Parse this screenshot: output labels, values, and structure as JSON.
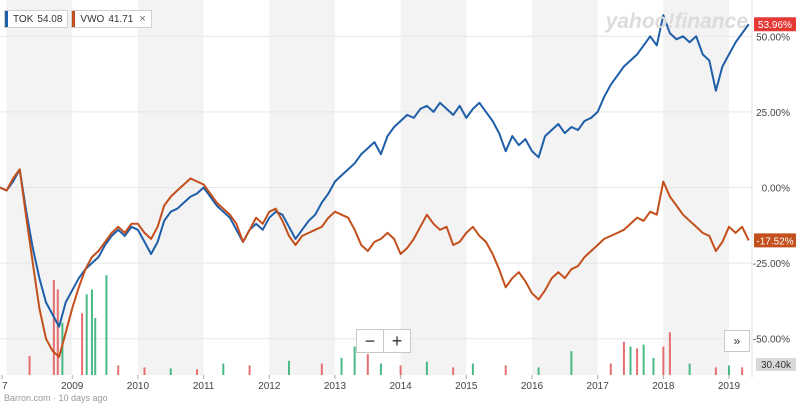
{
  "brand": "yahoo!finance",
  "legend": [
    {
      "symbol": "TOK",
      "value": "54.08",
      "color": "#1f5ea8",
      "close": ""
    },
    {
      "symbol": "VWO",
      "value": "41.71",
      "color": "#c24f1c",
      "close": "×"
    }
  ],
  "controls": {
    "zoom_out": "−",
    "zoom_in": "+",
    "expand": "»"
  },
  "footer_text": "Barron.com · 10 days ago",
  "volume_label": "30.40k",
  "chart_data": {
    "type": "line",
    "x_ticks": [
      "7",
      "2009",
      "2010",
      "2011",
      "2012",
      "2013",
      "2014",
      "2015",
      "2016",
      "2017",
      "2018",
      "2019"
    ],
    "y_ticks": [
      "50.00%",
      "25.00%",
      "0.00%",
      "-25.00%",
      "-50.00%"
    ],
    "ylim": [
      -62,
      62
    ],
    "xlim": [
      2007.9,
      2019.35
    ],
    "last_value_labels": {
      "TOK": "53.96%",
      "VWO": "-17.52%"
    },
    "series": [
      {
        "name": "TOK",
        "color": "#1f5ea8",
        "points": [
          [
            2007.9,
            0
          ],
          [
            2008.0,
            -1
          ],
          [
            2008.1,
            2
          ],
          [
            2008.2,
            6
          ],
          [
            2008.3,
            -8
          ],
          [
            2008.4,
            -20
          ],
          [
            2008.5,
            -30
          ],
          [
            2008.6,
            -38
          ],
          [
            2008.7,
            -42
          ],
          [
            2008.8,
            -46
          ],
          [
            2008.9,
            -38
          ],
          [
            2009.0,
            -34
          ],
          [
            2009.1,
            -30
          ],
          [
            2009.2,
            -27
          ],
          [
            2009.3,
            -25
          ],
          [
            2009.4,
            -23
          ],
          [
            2009.5,
            -19
          ],
          [
            2009.6,
            -16
          ],
          [
            2009.7,
            -14
          ],
          [
            2009.8,
            -16
          ],
          [
            2009.9,
            -13
          ],
          [
            2010.0,
            -14
          ],
          [
            2010.1,
            -18
          ],
          [
            2010.2,
            -22
          ],
          [
            2010.3,
            -18
          ],
          [
            2010.4,
            -11
          ],
          [
            2010.5,
            -8
          ],
          [
            2010.6,
            -7
          ],
          [
            2010.7,
            -5
          ],
          [
            2010.8,
            -3
          ],
          [
            2010.9,
            -2
          ],
          [
            2011.0,
            0
          ],
          [
            2011.1,
            -3
          ],
          [
            2011.2,
            -6
          ],
          [
            2011.3,
            -8
          ],
          [
            2011.4,
            -10
          ],
          [
            2011.5,
            -14
          ],
          [
            2011.6,
            -18
          ],
          [
            2011.7,
            -14
          ],
          [
            2011.8,
            -12
          ],
          [
            2011.9,
            -14
          ],
          [
            2012.0,
            -10
          ],
          [
            2012.1,
            -8
          ],
          [
            2012.2,
            -9
          ],
          [
            2012.3,
            -13
          ],
          [
            2012.4,
            -17
          ],
          [
            2012.5,
            -14
          ],
          [
            2012.6,
            -11
          ],
          [
            2012.7,
            -9
          ],
          [
            2012.8,
            -5
          ],
          [
            2012.9,
            -2
          ],
          [
            2013.0,
            2
          ],
          [
            2013.1,
            4
          ],
          [
            2013.2,
            6
          ],
          [
            2013.3,
            8
          ],
          [
            2013.4,
            11
          ],
          [
            2013.5,
            13
          ],
          [
            2013.6,
            15
          ],
          [
            2013.7,
            11
          ],
          [
            2013.8,
            17
          ],
          [
            2013.9,
            20
          ],
          [
            2014.0,
            22
          ],
          [
            2014.1,
            24
          ],
          [
            2014.2,
            23
          ],
          [
            2014.3,
            26
          ],
          [
            2014.4,
            27
          ],
          [
            2014.5,
            25
          ],
          [
            2014.6,
            28
          ],
          [
            2014.7,
            26
          ],
          [
            2014.8,
            24
          ],
          [
            2014.9,
            27
          ],
          [
            2015.0,
            23
          ],
          [
            2015.1,
            26
          ],
          [
            2015.2,
            28
          ],
          [
            2015.3,
            25
          ],
          [
            2015.4,
            22
          ],
          [
            2015.5,
            18
          ],
          [
            2015.6,
            12
          ],
          [
            2015.7,
            17
          ],
          [
            2015.8,
            14
          ],
          [
            2015.9,
            16
          ],
          [
            2016.0,
            12
          ],
          [
            2016.1,
            10
          ],
          [
            2016.2,
            17
          ],
          [
            2016.3,
            19
          ],
          [
            2016.4,
            21
          ],
          [
            2016.5,
            18
          ],
          [
            2016.6,
            20
          ],
          [
            2016.7,
            19
          ],
          [
            2016.8,
            22
          ],
          [
            2016.9,
            23
          ],
          [
            2017.0,
            25
          ],
          [
            2017.1,
            30
          ],
          [
            2017.2,
            34
          ],
          [
            2017.3,
            37
          ],
          [
            2017.4,
            40
          ],
          [
            2017.5,
            42
          ],
          [
            2017.6,
            44
          ],
          [
            2017.7,
            47
          ],
          [
            2017.8,
            50
          ],
          [
            2017.9,
            47
          ],
          [
            2018.0,
            57
          ],
          [
            2018.1,
            51
          ],
          [
            2018.2,
            49
          ],
          [
            2018.3,
            50
          ],
          [
            2018.4,
            48
          ],
          [
            2018.5,
            50
          ],
          [
            2018.6,
            44
          ],
          [
            2018.7,
            42
          ],
          [
            2018.8,
            32
          ],
          [
            2018.9,
            40
          ],
          [
            2019.0,
            44
          ],
          [
            2019.1,
            48
          ],
          [
            2019.2,
            51
          ],
          [
            2019.3,
            54
          ]
        ]
      },
      {
        "name": "VWO",
        "color": "#c24f1c",
        "points": [
          [
            2007.9,
            0
          ],
          [
            2008.0,
            -1
          ],
          [
            2008.1,
            3
          ],
          [
            2008.2,
            6
          ],
          [
            2008.3,
            -10
          ],
          [
            2008.4,
            -25
          ],
          [
            2008.5,
            -40
          ],
          [
            2008.6,
            -50
          ],
          [
            2008.7,
            -54
          ],
          [
            2008.8,
            -56
          ],
          [
            2008.9,
            -48
          ],
          [
            2009.0,
            -40
          ],
          [
            2009.1,
            -33
          ],
          [
            2009.2,
            -27
          ],
          [
            2009.3,
            -23
          ],
          [
            2009.4,
            -21
          ],
          [
            2009.5,
            -18
          ],
          [
            2009.6,
            -15
          ],
          [
            2009.7,
            -13
          ],
          [
            2009.8,
            -15
          ],
          [
            2009.9,
            -12
          ],
          [
            2010.0,
            -12
          ],
          [
            2010.1,
            -15
          ],
          [
            2010.2,
            -17
          ],
          [
            2010.3,
            -13
          ],
          [
            2010.4,
            -6
          ],
          [
            2010.5,
            -3
          ],
          [
            2010.6,
            -1
          ],
          [
            2010.7,
            1
          ],
          [
            2010.8,
            3
          ],
          [
            2010.9,
            2
          ],
          [
            2011.0,
            1
          ],
          [
            2011.1,
            -2
          ],
          [
            2011.2,
            -5
          ],
          [
            2011.3,
            -7
          ],
          [
            2011.4,
            -9
          ],
          [
            2011.5,
            -12
          ],
          [
            2011.6,
            -18
          ],
          [
            2011.7,
            -14
          ],
          [
            2011.8,
            -10
          ],
          [
            2011.9,
            -12
          ],
          [
            2012.0,
            -8
          ],
          [
            2012.1,
            -7
          ],
          [
            2012.2,
            -11
          ],
          [
            2012.3,
            -16
          ],
          [
            2012.4,
            -19
          ],
          [
            2012.5,
            -16
          ],
          [
            2012.6,
            -15
          ],
          [
            2012.7,
            -14
          ],
          [
            2012.8,
            -13
          ],
          [
            2012.9,
            -10
          ],
          [
            2013.0,
            -8
          ],
          [
            2013.1,
            -9
          ],
          [
            2013.2,
            -10
          ],
          [
            2013.3,
            -14
          ],
          [
            2013.4,
            -19
          ],
          [
            2013.5,
            -21
          ],
          [
            2013.6,
            -18
          ],
          [
            2013.7,
            -17
          ],
          [
            2013.8,
            -15
          ],
          [
            2013.9,
            -17
          ],
          [
            2014.0,
            -22
          ],
          [
            2014.1,
            -20
          ],
          [
            2014.2,
            -17
          ],
          [
            2014.3,
            -13
          ],
          [
            2014.4,
            -9
          ],
          [
            2014.5,
            -12
          ],
          [
            2014.6,
            -14
          ],
          [
            2014.7,
            -13
          ],
          [
            2014.8,
            -19
          ],
          [
            2014.9,
            -18
          ],
          [
            2015.0,
            -15
          ],
          [
            2015.1,
            -13
          ],
          [
            2015.2,
            -16
          ],
          [
            2015.3,
            -18
          ],
          [
            2015.4,
            -22
          ],
          [
            2015.5,
            -27
          ],
          [
            2015.6,
            -33
          ],
          [
            2015.7,
            -30
          ],
          [
            2015.8,
            -28
          ],
          [
            2015.9,
            -31
          ],
          [
            2016.0,
            -35
          ],
          [
            2016.1,
            -37
          ],
          [
            2016.2,
            -34
          ],
          [
            2016.3,
            -30
          ],
          [
            2016.4,
            -28
          ],
          [
            2016.5,
            -30
          ],
          [
            2016.6,
            -27
          ],
          [
            2016.7,
            -26
          ],
          [
            2016.8,
            -23
          ],
          [
            2016.9,
            -21
          ],
          [
            2017.0,
            -19
          ],
          [
            2017.1,
            -17
          ],
          [
            2017.2,
            -16
          ],
          [
            2017.3,
            -15
          ],
          [
            2017.4,
            -14
          ],
          [
            2017.5,
            -12
          ],
          [
            2017.6,
            -10
          ],
          [
            2017.7,
            -11
          ],
          [
            2017.8,
            -8
          ],
          [
            2017.9,
            -9
          ],
          [
            2018.0,
            2
          ],
          [
            2018.1,
            -3
          ],
          [
            2018.2,
            -6
          ],
          [
            2018.3,
            -9
          ],
          [
            2018.4,
            -11
          ],
          [
            2018.5,
            -13
          ],
          [
            2018.6,
            -15
          ],
          [
            2018.7,
            -16
          ],
          [
            2018.8,
            -21
          ],
          [
            2018.9,
            -18
          ],
          [
            2019.0,
            -13
          ],
          [
            2019.1,
            -15
          ],
          [
            2019.2,
            -13
          ],
          [
            2019.3,
            -17.5
          ]
        ]
      }
    ],
    "volume": [
      {
        "x": 2008.35,
        "v": 0.2,
        "up": false
      },
      {
        "x": 2008.72,
        "v": 1.0,
        "up": false
      },
      {
        "x": 2008.78,
        "v": 0.9,
        "up": false
      },
      {
        "x": 2008.85,
        "v": 0.55,
        "up": true
      },
      {
        "x": 2009.15,
        "v": 0.65,
        "up": false
      },
      {
        "x": 2009.22,
        "v": 0.85,
        "up": true
      },
      {
        "x": 2009.3,
        "v": 0.9,
        "up": true
      },
      {
        "x": 2009.35,
        "v": 0.6,
        "up": true
      },
      {
        "x": 2009.52,
        "v": 1.05,
        "up": true
      },
      {
        "x": 2009.7,
        "v": 0.1,
        "up": false
      },
      {
        "x": 2010.1,
        "v": 0.08,
        "up": false
      },
      {
        "x": 2010.5,
        "v": 0.07,
        "up": true
      },
      {
        "x": 2010.9,
        "v": 0.06,
        "up": false
      },
      {
        "x": 2011.3,
        "v": 0.12,
        "up": true
      },
      {
        "x": 2011.7,
        "v": 0.1,
        "up": false
      },
      {
        "x": 2012.3,
        "v": 0.15,
        "up": true
      },
      {
        "x": 2012.8,
        "v": 0.12,
        "up": false
      },
      {
        "x": 2013.1,
        "v": 0.18,
        "up": true
      },
      {
        "x": 2013.3,
        "v": 0.3,
        "up": true
      },
      {
        "x": 2013.5,
        "v": 0.22,
        "up": false
      },
      {
        "x": 2013.7,
        "v": 0.12,
        "up": true
      },
      {
        "x": 2014.0,
        "v": 0.1,
        "up": false
      },
      {
        "x": 2014.4,
        "v": 0.14,
        "up": true
      },
      {
        "x": 2014.8,
        "v": 0.08,
        "up": false
      },
      {
        "x": 2015.1,
        "v": 0.12,
        "up": true
      },
      {
        "x": 2015.6,
        "v": 0.1,
        "up": false
      },
      {
        "x": 2016.1,
        "v": 0.08,
        "up": true
      },
      {
        "x": 2016.6,
        "v": 0.25,
        "up": true
      },
      {
        "x": 2017.2,
        "v": 0.12,
        "up": false
      },
      {
        "x": 2017.4,
        "v": 0.35,
        "up": false
      },
      {
        "x": 2017.5,
        "v": 0.3,
        "up": true
      },
      {
        "x": 2017.6,
        "v": 0.28,
        "up": false
      },
      {
        "x": 2017.7,
        "v": 0.32,
        "up": true
      },
      {
        "x": 2017.85,
        "v": 0.18,
        "up": true
      },
      {
        "x": 2018.0,
        "v": 0.3,
        "up": false
      },
      {
        "x": 2018.1,
        "v": 0.45,
        "up": false
      },
      {
        "x": 2018.4,
        "v": 0.12,
        "up": true
      },
      {
        "x": 2018.8,
        "v": 0.08,
        "up": false
      },
      {
        "x": 2019.0,
        "v": 0.1,
        "up": true
      },
      {
        "x": 2019.2,
        "v": 0.08,
        "up": false
      }
    ]
  }
}
